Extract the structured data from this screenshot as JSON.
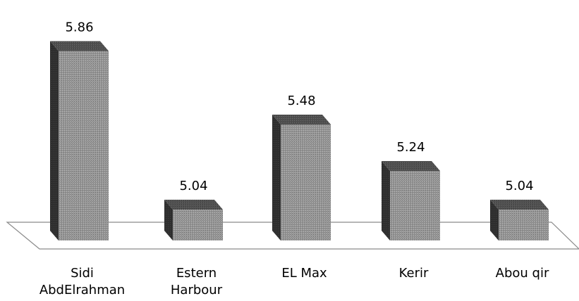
{
  "chart_data": {
    "type": "bar",
    "categories": [
      [
        "Sidi",
        "AbdElrahman"
      ],
      [
        "Estern",
        "Harbour"
      ],
      [
        "EL Max"
      ],
      [
        "Kerir"
      ],
      [
        "Abou qir"
      ]
    ],
    "values": [
      5.86,
      5.04,
      5.48,
      5.24,
      5.04
    ],
    "data_labels": [
      "5.86",
      "5.04",
      "5.48",
      "5.24",
      "5.04"
    ],
    "title": "",
    "xlabel": "",
    "ylabel": "",
    "ylim": [
      4.88,
      5.92
    ],
    "style": "3d-column",
    "grid": false,
    "legend": "none",
    "colors": {
      "front": "#8f8f8f",
      "side": "#2e2e2e",
      "top": "#555555",
      "floor_stroke": "#8a8a8a"
    }
  }
}
